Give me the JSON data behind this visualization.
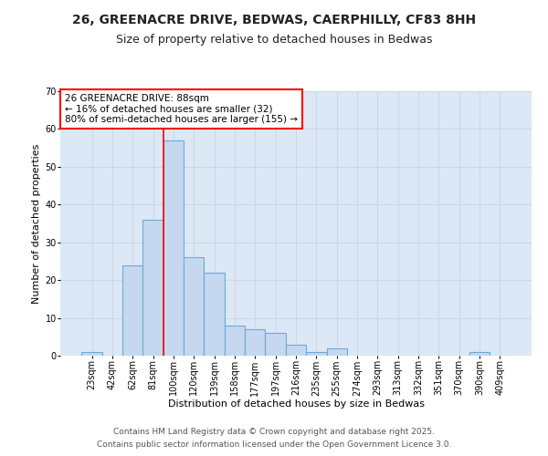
{
  "title_line1": "26, GREENACRE DRIVE, BEDWAS, CAERPHILLY, CF83 8HH",
  "title_line2": "Size of property relative to detached houses in Bedwas",
  "xlabel": "Distribution of detached houses by size in Bedwas",
  "ylabel": "Number of detached properties",
  "bar_labels": [
    "23sqm",
    "42sqm",
    "62sqm",
    "81sqm",
    "100sqm",
    "120sqm",
    "139sqm",
    "158sqm",
    "177sqm",
    "197sqm",
    "216sqm",
    "235sqm",
    "255sqm",
    "274sqm",
    "293sqm",
    "313sqm",
    "332sqm",
    "351sqm",
    "370sqm",
    "390sqm",
    "409sqm"
  ],
  "bar_values": [
    1,
    0,
    24,
    36,
    57,
    26,
    22,
    8,
    7,
    6,
    3,
    1,
    2,
    0,
    0,
    0,
    0,
    0,
    0,
    1,
    0
  ],
  "bar_color": "#c5d8f0",
  "bar_edgecolor": "#6aaad4",
  "bar_width": 1.0,
  "ylim": [
    0,
    70
  ],
  "yticks": [
    0,
    10,
    20,
    30,
    40,
    50,
    60,
    70
  ],
  "red_line_x": 3.5,
  "annotation_title": "26 GREENACRE DRIVE: 88sqm",
  "annotation_line2": "← 16% of detached houses are smaller (32)",
  "annotation_line3": "80% of semi-detached houses are larger (155) →",
  "grid_color": "#c8d4e8",
  "background_color": "#ffffff",
  "plot_bg_color": "#dce8f5",
  "footer_line1": "Contains HM Land Registry data © Crown copyright and database right 2025.",
  "footer_line2": "Contains public sector information licensed under the Open Government Licence 3.0.",
  "title_fontsize": 10,
  "subtitle_fontsize": 9,
  "axis_label_fontsize": 8,
  "tick_fontsize": 7,
  "annotation_fontsize": 7.5,
  "footer_fontsize": 6.5
}
